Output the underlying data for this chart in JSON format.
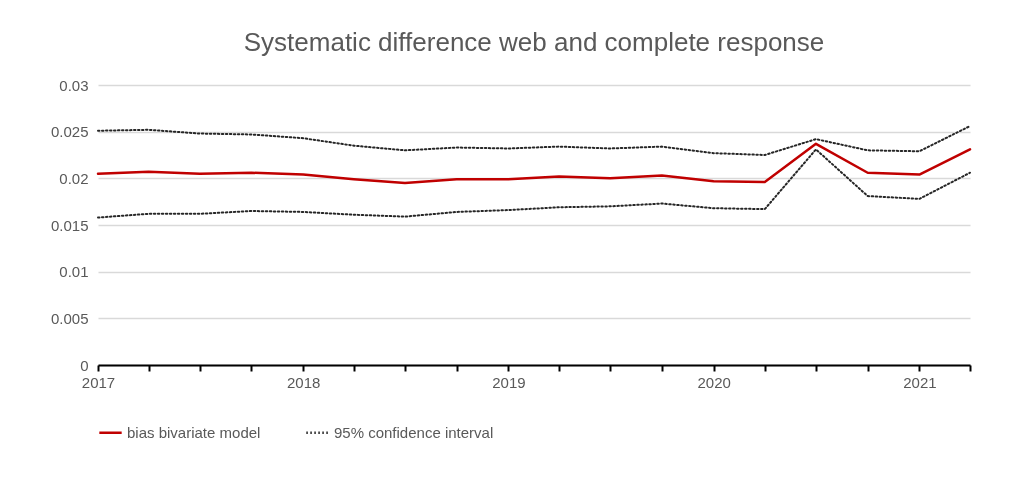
{
  "chart_data": {
    "type": "line",
    "title": "Systematic difference web and complete response",
    "x": [
      "2017-01",
      "2017-04",
      "2017-07",
      "2017-10",
      "2018-01",
      "2018-04",
      "2018-07",
      "2018-10",
      "2019-01",
      "2019-04",
      "2019-07",
      "2019-10",
      "2020-01",
      "2020-04",
      "2020-07",
      "2020-10",
      "2021-01",
      "2021-04"
    ],
    "series": [
      {
        "name": "bias bivariate model",
        "color": "#c00000",
        "line_style": "solid",
        "values": [
          0.0205,
          0.0207,
          0.0205,
          0.0206,
          0.0204,
          0.0199,
          0.0195,
          0.0199,
          0.0199,
          0.0202,
          0.02,
          0.0203,
          0.0197,
          0.0196,
          0.0237,
          0.0206,
          0.0204,
          0.0231
        ]
      },
      {
        "name": "95% confidence interval",
        "color": "#262626",
        "line_style": "dotted",
        "values": [
          0.0251,
          0.0252,
          0.0248,
          0.0247,
          0.0243,
          0.0235,
          0.023,
          0.0233,
          0.0232,
          0.0234,
          0.0232,
          0.0234,
          0.0227,
          0.0225,
          0.0242,
          0.023,
          0.0229,
          0.0256
        ]
      },
      {
        "color": "#262626",
        "line_style": "dotted",
        "values": [
          0.0158,
          0.0162,
          0.0162,
          0.0165,
          0.0164,
          0.0161,
          0.0159,
          0.0164,
          0.0166,
          0.0169,
          0.017,
          0.0173,
          0.0168,
          0.0167,
          0.0231,
          0.0181,
          0.0178,
          0.0206
        ]
      }
    ],
    "xlim": [
      "2017-01",
      "2021-04"
    ],
    "xticks": [
      "2017",
      {
        "value": "2017-04",
        "label": null
      },
      {
        "value": "2017-07",
        "label": null
      },
      {
        "value": "2017-10",
        "label": null
      },
      "2018",
      {
        "value": "2018-04",
        "label": null
      },
      {
        "value": "2018-07",
        "label": null
      },
      {
        "value": "2018-10",
        "label": null
      },
      "2019",
      {
        "value": "2019-04",
        "label": null
      },
      {
        "value": "2019-07",
        "label": null
      },
      {
        "value": "2019-10",
        "label": null
      },
      "2020",
      {
        "value": "2020-04",
        "label": null
      },
      {
        "value": "2020-07",
        "label": null
      },
      {
        "value": "2020-10",
        "label": null
      },
      "2021",
      {
        "value": "2021-04",
        "label": null
      }
    ],
    "ylim": [
      0,
      0.03
    ],
    "yticks": [
      0,
      0.005,
      0.01,
      0.015,
      0.02,
      0.025,
      0.03
    ],
    "grid": "y",
    "legend": "bottom",
    "marker": "none"
  }
}
